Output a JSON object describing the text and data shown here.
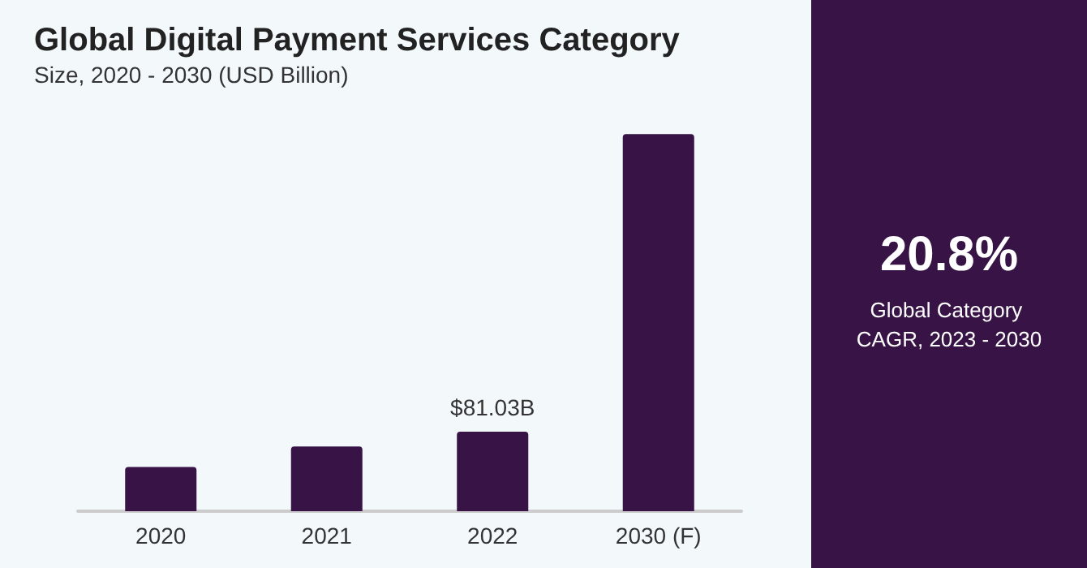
{
  "chart_data": {
    "type": "bar",
    "title": "Global Digital Payment Services Category",
    "subtitle": "Size, 2020 - 2030 (USD Billion)",
    "categories": [
      "2020",
      "2021",
      "2022",
      "2030 (F)"
    ],
    "values": [
      45,
      66,
      81.03,
      384
    ],
    "value_labels": [
      null,
      null,
      "$81.03B",
      null
    ],
    "color": "#371346",
    "annotations": [
      "20.8%",
      "Global Category CAGR, 2023 - 2030"
    ],
    "grid": false
  }
}
